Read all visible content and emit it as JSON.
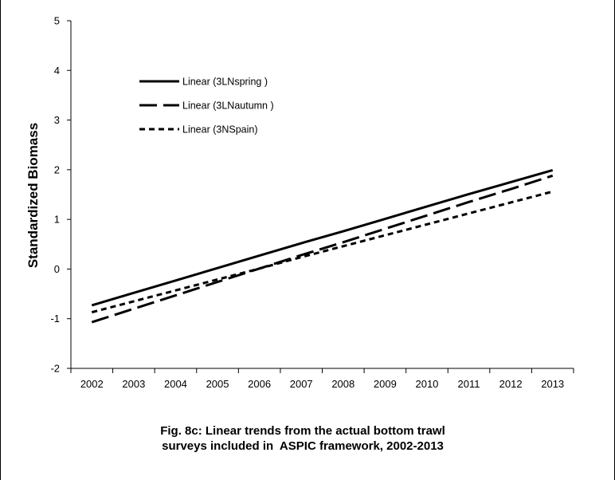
{
  "chart_data": {
    "type": "line",
    "title": "",
    "xlabel": "",
    "ylabel": "Standardized Biomass",
    "categories": [
      "2002",
      "2003",
      "2004",
      "2005",
      "2006",
      "2007",
      "2008",
      "2009",
      "2010",
      "2011",
      "2012",
      "2013"
    ],
    "ylim": [
      -2,
      5
    ],
    "yticks": [
      "-2",
      "-1",
      "0",
      "1",
      "2",
      "3",
      "4",
      "5"
    ],
    "grid": false,
    "legend_position": "top-left",
    "series": [
      {
        "name": "Linear (3LNspring )",
        "style": "solid",
        "values": [
          -0.73,
          -0.48,
          -0.23,
          0.02,
          0.27,
          0.52,
          0.76,
          1.01,
          1.26,
          1.51,
          1.75,
          1.99
        ]
      },
      {
        "name": "Linear (3LNautumn )",
        "style": "long-dash",
        "values": [
          -1.07,
          -0.8,
          -0.53,
          -0.26,
          0.01,
          0.28,
          0.54,
          0.81,
          1.08,
          1.35,
          1.61,
          1.88
        ]
      },
      {
        "name": "Linear (3NSpain)",
        "style": "short-dash",
        "values": [
          -0.87,
          -0.65,
          -0.43,
          -0.21,
          0.01,
          0.24,
          0.46,
          0.68,
          0.9,
          1.12,
          1.34,
          1.56
        ]
      }
    ],
    "line_color": "#000000"
  },
  "caption": {
    "line1": "Fig. 8c: Linear trends from the actual bottom trawl",
    "line2": "surveys included in  ASPIC framework, 2002-2013"
  }
}
